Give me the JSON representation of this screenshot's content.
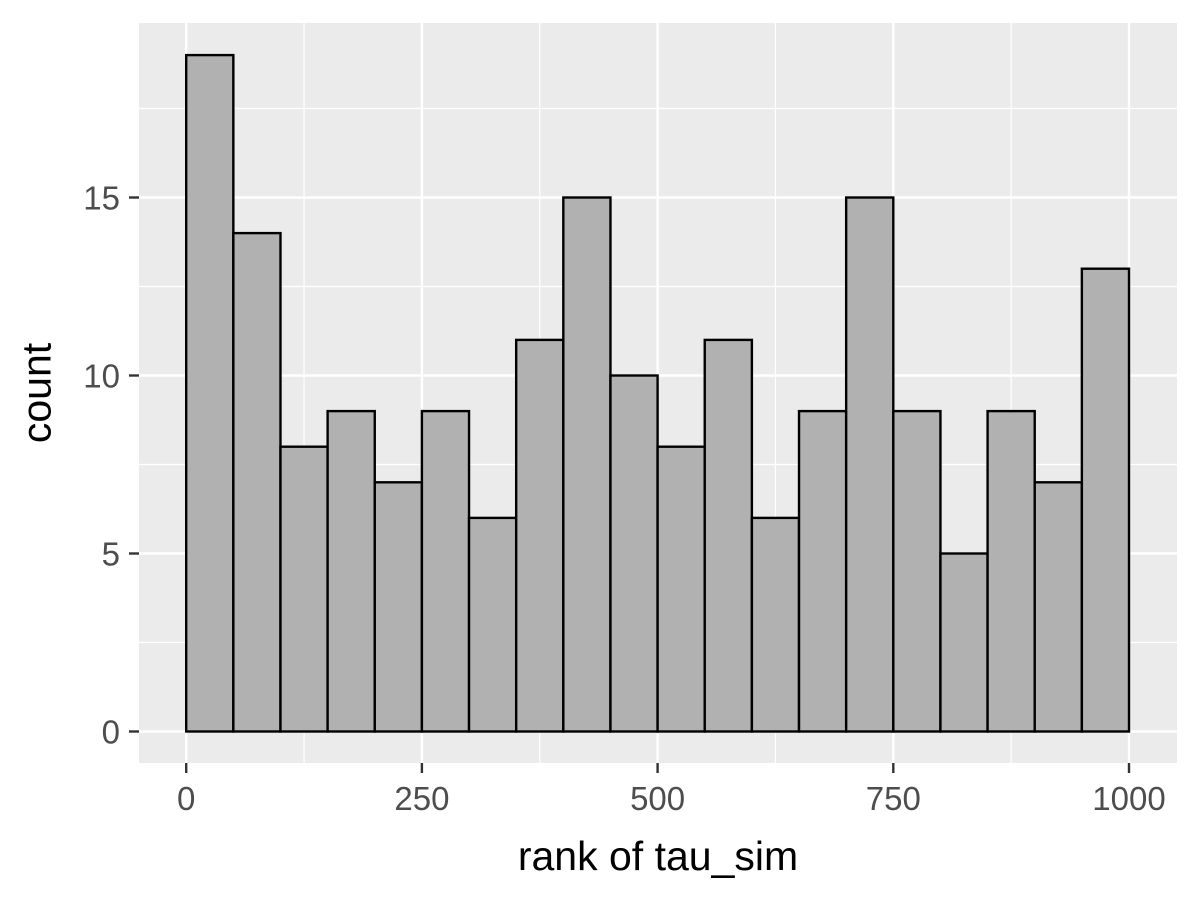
{
  "figure": {
    "kind": "ggplot-histogram",
    "background": "#ffffff",
    "panel_background": "#EBEBEB",
    "grid_color": "#ffffff",
    "bar_fill": "#B1B1B1",
    "bar_stroke": "#000000",
    "tick_mark_color": "#333333",
    "tick_label_color": "#4D4D4D",
    "axis_title_color": "#000000"
  },
  "chart_data": {
    "type": "bar",
    "subtype": "histogram",
    "title": "",
    "xlabel": "rank of tau_sim",
    "ylabel": "count",
    "bin_width": 50,
    "bin_starts": [
      0,
      50,
      100,
      150,
      200,
      250,
      300,
      350,
      400,
      450,
      500,
      550,
      600,
      650,
      700,
      750,
      800,
      850,
      900,
      950
    ],
    "values": [
      19,
      14,
      8,
      9,
      7,
      9,
      6,
      11,
      15,
      10,
      8,
      11,
      6,
      9,
      15,
      9,
      5,
      9,
      7,
      13
    ],
    "xlim": [
      0,
      1000
    ],
    "ylim": [
      0,
      19
    ],
    "x_major_ticks": [
      0,
      250,
      500,
      750,
      1000
    ],
    "x_tick_labels": [
      "0",
      "250",
      "500",
      "750",
      "1000"
    ],
    "x_minor_gridlines": [
      125,
      375,
      625,
      875
    ],
    "y_major_ticks": [
      0,
      5,
      10,
      15
    ],
    "y_tick_labels": [
      "0",
      "5",
      "10",
      "15"
    ],
    "y_minor_gridlines": [
      2.5,
      7.5,
      12.5,
      17.5
    ],
    "grid": "white major+minor on grey panel",
    "legend": "none"
  }
}
